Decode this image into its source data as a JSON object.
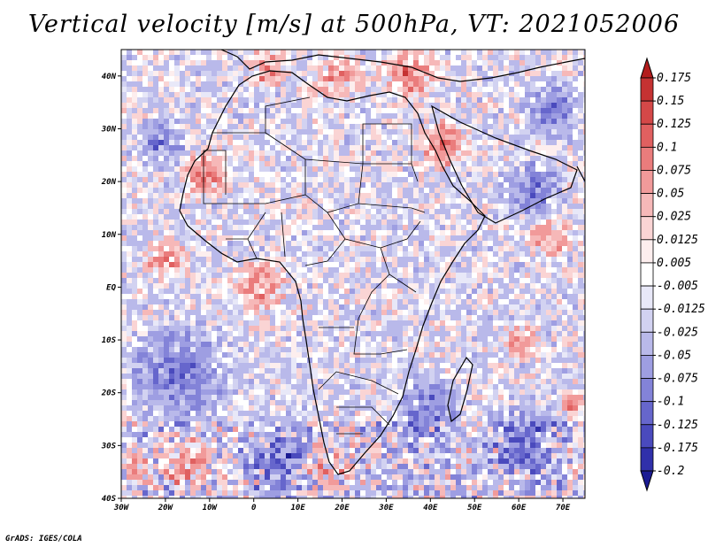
{
  "title": "Vertical velocity [m/s] at 500hPa, VT: 2021052006",
  "credit": "GrADS: IGES/COLA",
  "variable": "Vertical velocity",
  "units": "m/s",
  "level": "500hPa",
  "valid_time": "2021052006",
  "map": {
    "lon_range": [
      -30,
      75
    ],
    "lat_range": [
      -40,
      45
    ],
    "x_ticks": [
      {
        "value": -30,
        "label": "30W"
      },
      {
        "value": -20,
        "label": "20W"
      },
      {
        "value": -10,
        "label": "10W"
      },
      {
        "value": 0,
        "label": "0"
      },
      {
        "value": 10,
        "label": "10E"
      },
      {
        "value": 20,
        "label": "20E"
      },
      {
        "value": 30,
        "label": "30E"
      },
      {
        "value": 40,
        "label": "40E"
      },
      {
        "value": 50,
        "label": "50E"
      },
      {
        "value": 60,
        "label": "60E"
      },
      {
        "value": 70,
        "label": "70E"
      }
    ],
    "y_ticks": [
      {
        "value": 40,
        "label": "40N"
      },
      {
        "value": 30,
        "label": "30N"
      },
      {
        "value": 20,
        "label": "20N"
      },
      {
        "value": 10,
        "label": "10N"
      },
      {
        "value": 0,
        "label": "EQ"
      },
      {
        "value": -10,
        "label": "10S"
      },
      {
        "value": -20,
        "label": "20S"
      },
      {
        "value": -30,
        "label": "30S"
      },
      {
        "value": -40,
        "label": "40S"
      }
    ]
  },
  "colorbar": {
    "labels": [
      "0.175",
      "0.15",
      "0.125",
      "0.1",
      "0.075",
      "0.05",
      "0.025",
      "0.0125",
      "0.005",
      "-0.005",
      "-0.0125",
      "-0.025",
      "-0.05",
      "-0.075",
      "-0.1",
      "-0.125",
      "-0.175",
      "-0.2"
    ],
    "colors": [
      "#b31c1c",
      "#c53232",
      "#d44848",
      "#e06060",
      "#ea7c7c",
      "#f19a9a",
      "#f6b8b8",
      "#fad4d4",
      "#fdeeee",
      "#ffffff",
      "#e8e8f8",
      "#d2d2f1",
      "#b9b9ea",
      "#9e9ee2",
      "#8383d8",
      "#6666cc",
      "#4a4abd",
      "#3030aa",
      "#1b1b93"
    ]
  }
}
